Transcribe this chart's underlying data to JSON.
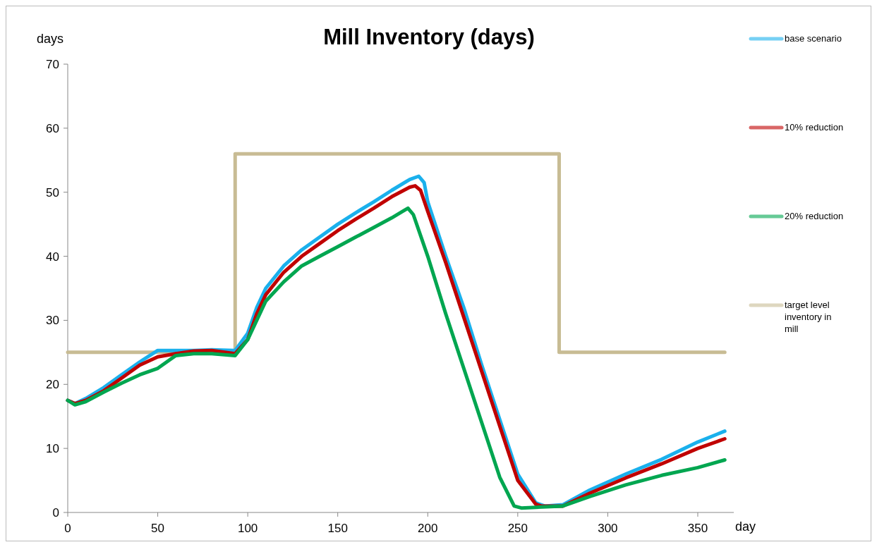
{
  "chart_data": {
    "type": "line",
    "title": "Mill Inventory (days)",
    "xlabel": "day",
    "ylabel": "days",
    "xlim": [
      0,
      370
    ],
    "ylim": [
      0,
      70
    ],
    "xticks": [
      0,
      50,
      100,
      150,
      200,
      250,
      300,
      350
    ],
    "yticks": [
      0,
      10,
      20,
      30,
      40,
      50,
      60,
      70
    ],
    "grid": false,
    "legend": "right",
    "marker": "none",
    "line_style": "solid",
    "series": [
      {
        "name": "base scenario",
        "color": "#1ab0ec",
        "x": [
          0,
          4,
          10,
          20,
          30,
          40,
          50,
          60,
          70,
          80,
          93,
          100,
          105,
          110,
          120,
          130,
          140,
          150,
          160,
          170,
          180,
          190,
          195,
          198,
          200,
          210,
          220,
          230,
          240,
          250,
          260,
          265,
          275,
          290,
          310,
          330,
          350,
          365
        ],
        "values": [
          17.5,
          17,
          17.8,
          19.5,
          21.5,
          23.5,
          25.3,
          25.3,
          25.3,
          25.4,
          25.3,
          28,
          32,
          35,
          38.5,
          41,
          43,
          45,
          46.8,
          48.5,
          50.3,
          52,
          52.5,
          51.5,
          48.5,
          40,
          32,
          23,
          14.5,
          6,
          1.5,
          1,
          1.2,
          3.5,
          6,
          8.3,
          11,
          12.7
        ]
      },
      {
        "name": "10% reduction",
        "color": "#c00000",
        "x": [
          0,
          4,
          10,
          20,
          30,
          40,
          50,
          60,
          70,
          80,
          93,
          100,
          105,
          110,
          120,
          130,
          140,
          150,
          160,
          170,
          180,
          190,
          193,
          196,
          200,
          210,
          220,
          230,
          240,
          250,
          260,
          263,
          275,
          290,
          310,
          330,
          350,
          365
        ],
        "values": [
          17.5,
          17,
          17.5,
          19,
          21,
          23,
          24.3,
          24.8,
          25.2,
          25.3,
          24.8,
          27,
          31,
          34,
          37.5,
          40,
          42,
          44,
          45.8,
          47.5,
          49.3,
          50.8,
          51,
          50.3,
          47,
          39,
          30.5,
          22,
          13.5,
          5,
          1.3,
          1,
          1,
          3,
          5.4,
          7.6,
          10,
          11.5
        ]
      },
      {
        "name": "20% reduction",
        "color": "#00a650",
        "x": [
          0,
          4,
          10,
          20,
          30,
          40,
          50,
          60,
          70,
          80,
          93,
          100,
          105,
          110,
          120,
          130,
          140,
          150,
          160,
          170,
          180,
          186,
          189,
          192,
          200,
          210,
          220,
          230,
          240,
          248,
          252,
          260,
          275,
          290,
          310,
          330,
          350,
          365
        ],
        "values": [
          17.5,
          16.8,
          17.3,
          18.8,
          20.2,
          21.5,
          22.5,
          24.5,
          24.8,
          24.8,
          24.5,
          27,
          30,
          33,
          36,
          38.5,
          40,
          41.5,
          43,
          44.5,
          46,
          47,
          47.5,
          46.5,
          40,
          31,
          22.5,
          14,
          5.5,
          1,
          0.7,
          0.8,
          1,
          2.5,
          4.3,
          5.8,
          7,
          8.2
        ]
      },
      {
        "name": "target level inventory in mill",
        "type": "step",
        "color": "#c8bc94",
        "x": [
          0,
          93,
          273,
          365
        ],
        "values": [
          25,
          56,
          25,
          25
        ]
      }
    ]
  }
}
